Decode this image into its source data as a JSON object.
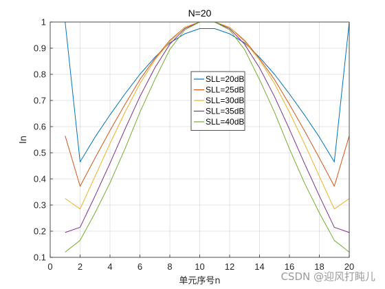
{
  "chart_data": {
    "type": "line",
    "title": "N=20",
    "xlabel": "单元序号n",
    "ylabel": "In",
    "xlim": [
      0,
      20
    ],
    "ylim": [
      0.1,
      1.0
    ],
    "xticks": [
      0,
      2,
      4,
      6,
      8,
      10,
      12,
      14,
      16,
      18,
      20
    ],
    "yticks": [
      0.1,
      0.2,
      0.3,
      0.4,
      0.5,
      0.6,
      0.7,
      0.8,
      0.9,
      1.0
    ],
    "grid": true,
    "legend_position": "center",
    "x": [
      1,
      2,
      3,
      4,
      5,
      6,
      7,
      8,
      9,
      10,
      11,
      12,
      13,
      14,
      15,
      16,
      17,
      18,
      19,
      20
    ],
    "series": [
      {
        "name": "SLL=20dB",
        "color": "#0072BD",
        "values": [
          1.0,
          0.465,
          0.56,
          0.645,
          0.725,
          0.8,
          0.865,
          0.92,
          0.955,
          0.975,
          0.975,
          0.955,
          0.92,
          0.865,
          0.8,
          0.725,
          0.645,
          0.56,
          0.465,
          1.0
        ]
      },
      {
        "name": "SLL=25dB",
        "color": "#D95319",
        "values": [
          0.565,
          0.372,
          0.48,
          0.585,
          0.685,
          0.78,
          0.86,
          0.93,
          0.98,
          1.0,
          1.0,
          0.98,
          0.93,
          0.86,
          0.78,
          0.685,
          0.585,
          0.48,
          0.372,
          0.565
        ]
      },
      {
        "name": "SLL=30dB",
        "color": "#EDB120",
        "values": [
          0.325,
          0.285,
          0.41,
          0.535,
          0.655,
          0.765,
          0.855,
          0.925,
          0.98,
          1.0,
          1.0,
          0.98,
          0.925,
          0.855,
          0.765,
          0.655,
          0.535,
          0.41,
          0.285,
          0.325
        ]
      },
      {
        "name": "SLL=35dB",
        "color": "#7E2F8E",
        "values": [
          0.195,
          0.215,
          0.335,
          0.46,
          0.59,
          0.715,
          0.825,
          0.915,
          0.975,
          1.0,
          1.0,
          0.975,
          0.915,
          0.825,
          0.715,
          0.59,
          0.46,
          0.335,
          0.215,
          0.195
        ]
      },
      {
        "name": "SLL=40dB",
        "color": "#77AC30",
        "values": [
          0.12,
          0.165,
          0.27,
          0.385,
          0.515,
          0.655,
          0.78,
          0.895,
          0.97,
          1.0,
          1.0,
          0.97,
          0.895,
          0.78,
          0.655,
          0.515,
          0.385,
          0.27,
          0.165,
          0.12
        ]
      }
    ]
  },
  "watermark": "CSDN @迎风打盹儿"
}
